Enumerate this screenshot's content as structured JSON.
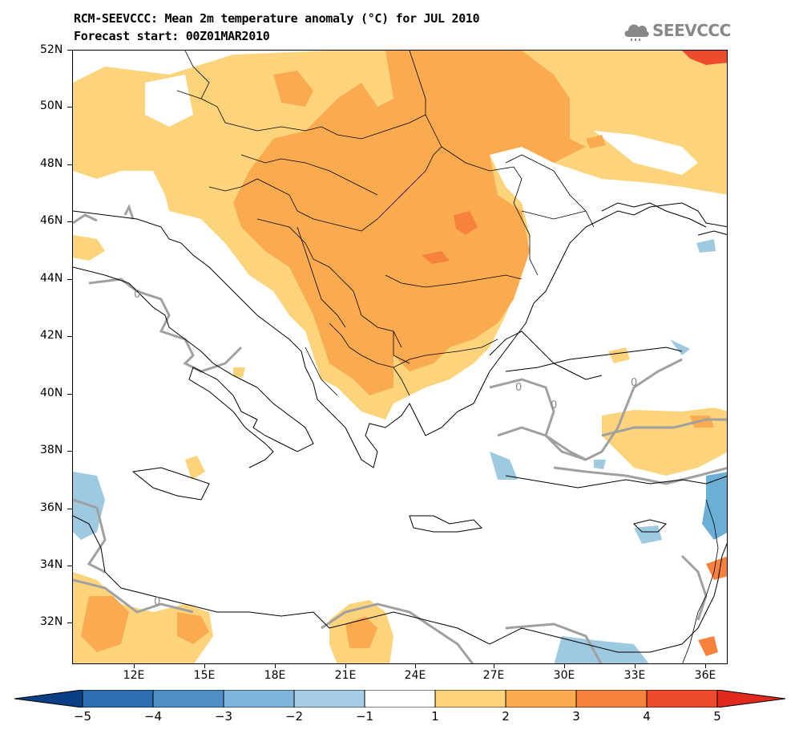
{
  "header": {
    "title_line1": "RCM-SEEVCCC: Mean 2m temperature anomaly (°C) for JUL 2010",
    "title_line2": "Forecast start: 00Z01MAR2010",
    "logo_text": "SEEVCCC",
    "logo_icon": "cloud-icon"
  },
  "map": {
    "lat_labels": [
      "52N",
      "50N",
      "48N",
      "46N",
      "44N",
      "42N",
      "40N",
      "38N",
      "36N",
      "34N",
      "32N"
    ],
    "lon_labels": [
      "12E",
      "15E",
      "18E",
      "21E",
      "24E",
      "27E",
      "30E",
      "33E",
      "36E"
    ],
    "contour_labels": [
      "0",
      "0",
      "0",
      "0",
      "0"
    ],
    "colors": {
      "land_border": "#000000",
      "zero_contour": "#a0a0a0",
      "anom_1_2": "#fdd47b",
      "anom_2_3": "#fbab4f",
      "anom_3_4": "#f7823e",
      "anom_4_5": "#ee4a2e",
      "anom_m1_m2": "#9ecae1",
      "anom_m2_m3": "#6baed6"
    }
  },
  "colorbar": {
    "labels": [
      "−5",
      "−4",
      "−3",
      "−2",
      "−1",
      "1",
      "2",
      "3",
      "4",
      "5"
    ],
    "colors": [
      "#0a3f86",
      "#2e6eb0",
      "#4f8fc6",
      "#7fb4dc",
      "#a6cde7",
      "#ffffff",
      "#fdd47b",
      "#fbab4f",
      "#f7823e",
      "#ee4a2e",
      "#e02a1e"
    ]
  }
}
